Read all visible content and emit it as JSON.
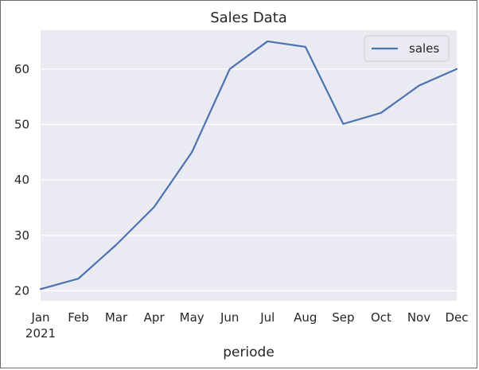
{
  "chart_data": {
    "type": "line",
    "title": "Sales Data",
    "xlabel": "periode",
    "ylabel": "",
    "categories": [
      "Jan",
      "Feb",
      "Mar",
      "Apr",
      "May",
      "Jun",
      "Jul",
      "Aug",
      "Sep",
      "Oct",
      "Nov",
      "Dec"
    ],
    "year_label": "2021",
    "yticks": [
      20,
      30,
      40,
      50,
      60
    ],
    "ylim": [
      18.2,
      67.0
    ],
    "grid": true,
    "legend_position": "top-right",
    "series": [
      {
        "name": "sales",
        "values": [
          20.3,
          22.2,
          28.3,
          35.1,
          45.0,
          60.0,
          65.0,
          64.0,
          50.1,
          52.1,
          57.0,
          60.0
        ]
      }
    ],
    "colors": {
      "plot_background": "#eaeaf2",
      "grid": "#ffffff",
      "line": "#4c72b0",
      "legend_background": "#eaeaf2",
      "legend_border": "#cccccc"
    }
  }
}
